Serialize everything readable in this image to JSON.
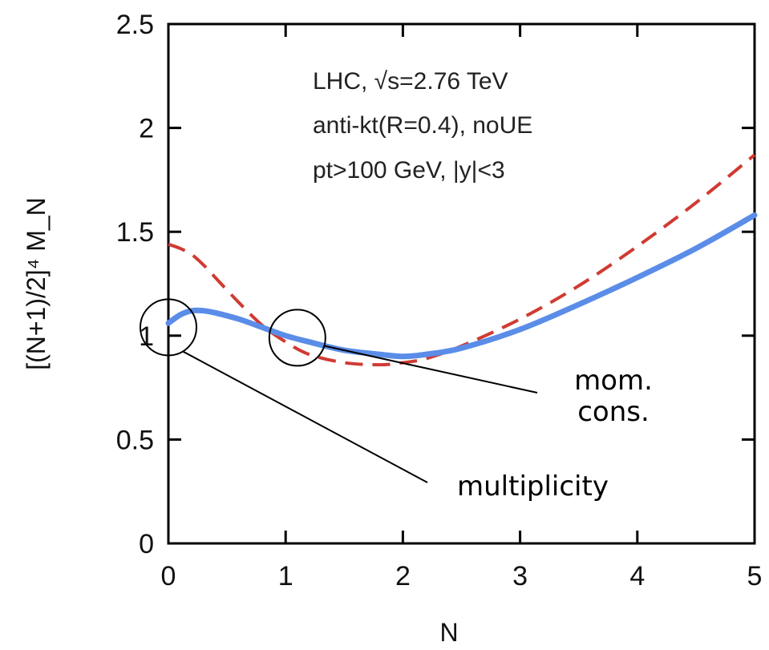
{
  "chart_data": {
    "type": "line",
    "xlabel": "N",
    "ylabel": "[(N+1)/2]⁴ M_N",
    "xlim": [
      0,
      5
    ],
    "ylim": [
      0,
      2.5
    ],
    "x_ticks": [
      "0",
      "1",
      "2",
      "3",
      "4",
      "5"
    ],
    "y_ticks": [
      "0",
      "0.5",
      "1",
      "1.5",
      "2",
      "2.5"
    ],
    "legend_lines": [
      "LHC, √s=2.76 TeV",
      "anti-kt(R=0.4), noUE",
      "pt>100 GeV, |y|<3"
    ],
    "series": [
      {
        "style": "solid",
        "color": "#5b8de8",
        "x": [
          0,
          0.1,
          0.2,
          0.3,
          0.4,
          0.6,
          0.8,
          1.0,
          1.2,
          1.5,
          1.8,
          2.0,
          2.2,
          2.5,
          3.0,
          3.5,
          4.0,
          4.5,
          5.0
        ],
        "y": [
          1.06,
          1.1,
          1.12,
          1.12,
          1.11,
          1.08,
          1.04,
          1.0,
          0.97,
          0.93,
          0.91,
          0.9,
          0.91,
          0.94,
          1.03,
          1.15,
          1.28,
          1.42,
          1.58
        ]
      },
      {
        "style": "dashed",
        "color": "#d03a32",
        "x": [
          0,
          0.1,
          0.2,
          0.3,
          0.4,
          0.6,
          0.8,
          1.0,
          1.2,
          1.5,
          1.8,
          2.0,
          2.2,
          2.5,
          3.0,
          3.5,
          4.0,
          4.5,
          5.0
        ],
        "y": [
          1.44,
          1.42,
          1.39,
          1.34,
          1.28,
          1.16,
          1.05,
          0.97,
          0.91,
          0.87,
          0.86,
          0.87,
          0.89,
          0.95,
          1.08,
          1.24,
          1.43,
          1.64,
          1.87
        ]
      }
    ],
    "annotations": [
      {
        "lines": [
          "mom.",
          "cons."
        ],
        "circle_at": [
          1.1,
          0.99
        ]
      },
      {
        "lines": [
          "multiplicity"
        ],
        "circle_at": [
          0.0,
          1.04
        ]
      }
    ]
  },
  "colors": {
    "axis": "#000000",
    "blue": "#5b8de8",
    "red": "#d03a32"
  }
}
